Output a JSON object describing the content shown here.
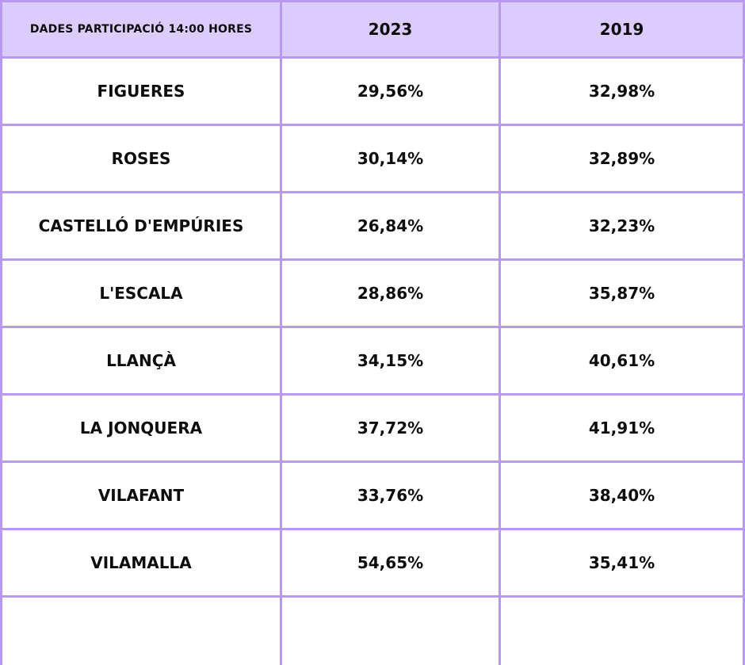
{
  "header": {
    "col1": "DADES PARTICIPACIÓ 14:00 HORES",
    "col2": "2023",
    "col3": "2019"
  },
  "rows": [
    {
      "municipality": "FIGUERES",
      "y2023": "29,56%",
      "y2019": "32,98%"
    },
    {
      "municipality": "ROSES",
      "y2023": "30,14%",
      "y2019": "32,89%"
    },
    {
      "municipality": "CASTELLÓ D'EMPÚRIES",
      "y2023": "26,84%",
      "y2019": "32,23%"
    },
    {
      "municipality": "L'ESCALA",
      "y2023": "28,86%",
      "y2019": "35,87%"
    },
    {
      "municipality": "LLANÇÀ",
      "y2023": "34,15%",
      "y2019": "40,61%"
    },
    {
      "municipality": "LA JONQUERA",
      "y2023": "37,72%",
      "y2019": "41,91%"
    },
    {
      "municipality": "VILAFANT",
      "y2023": "33,76%",
      "y2019": "38,40%"
    },
    {
      "municipality": "VILAMALLA",
      "y2023": "54,65%",
      "y2019": "35,41%"
    }
  ],
  "colors": {
    "header_bg": "#dccbfd",
    "border": "#b79af0",
    "text": "#0d0d0d",
    "cell_bg": "#ffffff"
  }
}
